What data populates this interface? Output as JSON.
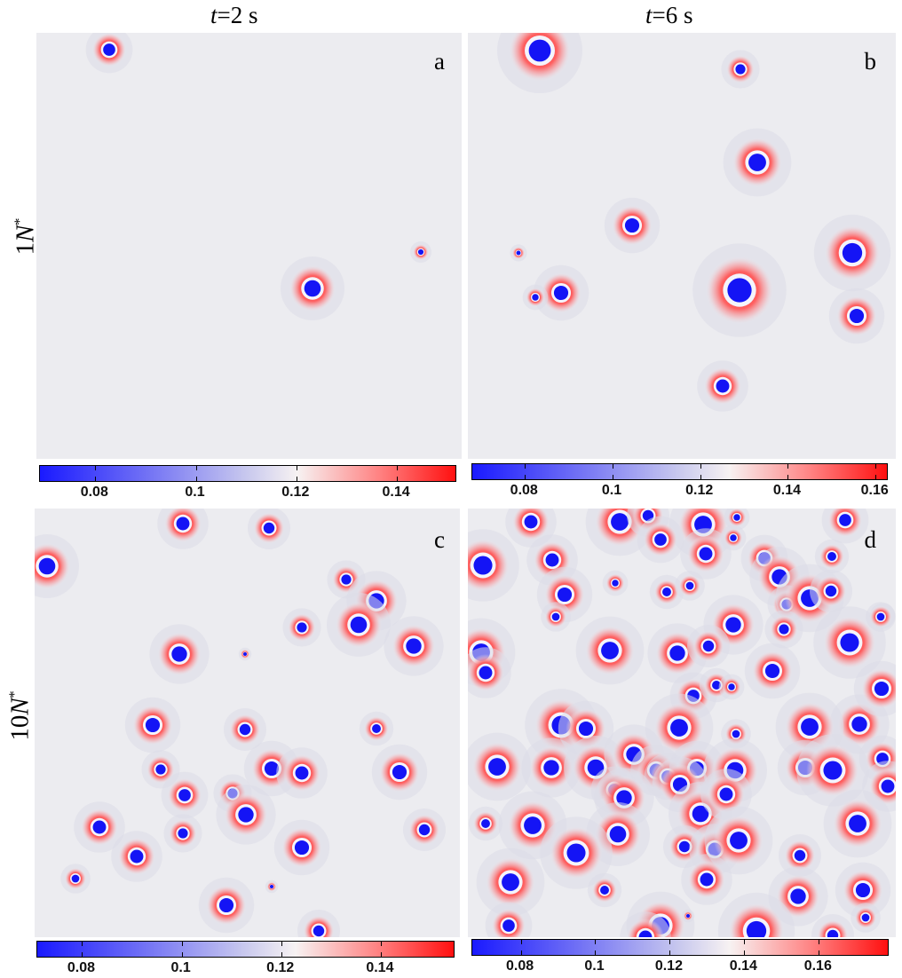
{
  "columns": [
    {
      "var": "t",
      "rest": "=2 s"
    },
    {
      "var": "t",
      "rest": "=6 s"
    }
  ],
  "rows": [
    {
      "num": "1",
      "var": "N",
      "sup": "*"
    },
    {
      "num": "10",
      "var": "N",
      "sup": "*"
    }
  ],
  "panels": {
    "a": {
      "letter": "a"
    },
    "b": {
      "letter": "b"
    },
    "c": {
      "letter": "c"
    },
    "d": {
      "letter": "d"
    }
  },
  "colorbars": {
    "a": {
      "ticks": [
        "0.08",
        "0.1",
        "0.12",
        "0.14"
      ],
      "min": 0.069,
      "max": 0.152
    },
    "b": {
      "ticks": [
        "0.08",
        "0.1",
        "0.12",
        "0.14",
        "0.16"
      ],
      "min": 0.068,
      "max": 0.163
    },
    "c": {
      "ticks": [
        "0.08",
        "0.1",
        "0.12",
        "0.14"
      ],
      "min": 0.071,
      "max": 0.155
    },
    "d": {
      "ticks": [
        "0.08",
        "0.1",
        "0.12",
        "0.14",
        "0.16"
      ],
      "min": 0.067,
      "max": 0.179
    }
  },
  "colors": {
    "low": "#1a1aff",
    "mid": "#ececf0",
    "high": "#ff1010"
  }
}
